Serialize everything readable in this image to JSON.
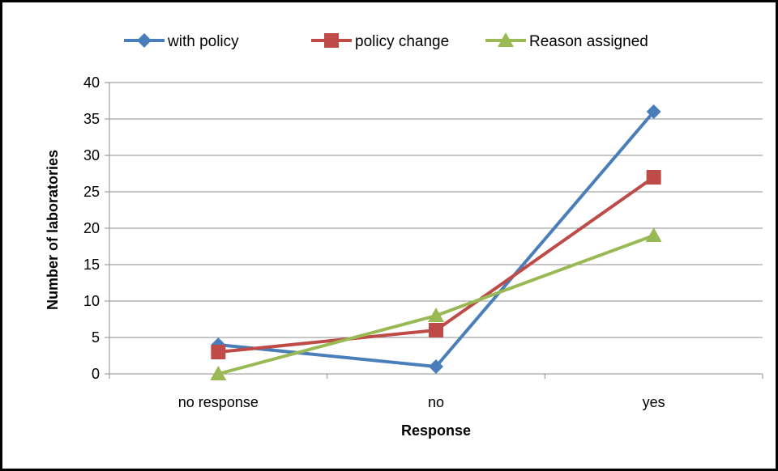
{
  "chart_data": {
    "type": "line",
    "title": "",
    "xlabel": "Response",
    "ylabel": "Number of  laboratories",
    "categories": [
      "no response",
      "no",
      "yes"
    ],
    "ylim": [
      0,
      40
    ],
    "yticks": [
      0,
      5,
      10,
      15,
      20,
      25,
      30,
      35,
      40
    ],
    "grid": true,
    "legend_position": "top",
    "series": [
      {
        "name": "with policy",
        "values": [
          4,
          1,
          36
        ],
        "color": "#4a7ebb",
        "marker": "diamond"
      },
      {
        "name": "policy change",
        "values": [
          3,
          6,
          27
        ],
        "color": "#be4b48",
        "marker": "square"
      },
      {
        "name": "Reason assigned",
        "values": [
          0,
          8,
          19
        ],
        "color": "#98b954",
        "marker": "triangle"
      }
    ]
  }
}
